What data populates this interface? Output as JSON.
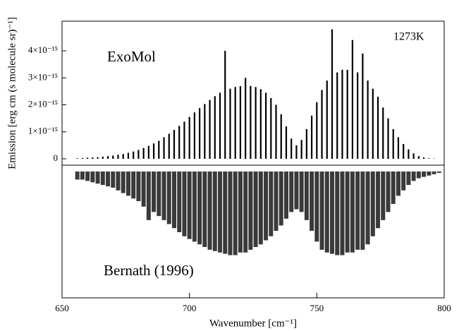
{
  "chart_data": {
    "type": "stick-spectrum",
    "xlabel": "Wavenumber [cm⁻¹]",
    "ylabel": "Emission [erg cm (s molecule sr)⁻¹]",
    "annotation": "1273K",
    "xlim": [
      650,
      800
    ],
    "xticks": [
      650,
      700,
      750,
      800
    ],
    "ylim": [
      0,
      5.1e-15
    ],
    "yticks": [
      0,
      {
        "value": 1e-15,
        "label": "1×10⁻¹⁵"
      },
      {
        "value": 2e-15,
        "label": "2×10⁻¹⁵"
      },
      {
        "value": 3e-15,
        "label": "3×10⁻¹⁵"
      },
      {
        "value": 4e-15,
        "label": "4×10⁻¹⁵"
      }
    ],
    "x": [
      656,
      658,
      660,
      662,
      664,
      666,
      668,
      670,
      672,
      674,
      676,
      678,
      680,
      682,
      684,
      686,
      688,
      690,
      692,
      694,
      696,
      698,
      700,
      702,
      704,
      706,
      708,
      710,
      712,
      714,
      716,
      718,
      720,
      722,
      724,
      726,
      728,
      730,
      732,
      734,
      736,
      738,
      740,
      742,
      744,
      746,
      748,
      750,
      752,
      754,
      756,
      758,
      760,
      762,
      764,
      766,
      768,
      770,
      772,
      774,
      776,
      778,
      780,
      782,
      784,
      786,
      788,
      790,
      792,
      794,
      796,
      798
    ],
    "series": [
      {
        "name": "ExoMol",
        "color": "#000000",
        "direction": "up",
        "values": [
          2e-17,
          3e-17,
          4e-17,
          5e-17,
          6e-17,
          8e-17,
          1e-16,
          1.2e-16,
          1.5e-16,
          1.8e-16,
          2.2e-16,
          2.7e-16,
          3.3e-16,
          4e-16,
          4.8e-16,
          5.7e-16,
          6.7e-16,
          8e-16,
          9.3e-16,
          1.07e-15,
          1.22e-15,
          1.38e-15,
          1.55e-15,
          1.72e-15,
          1.88e-15,
          2.03e-15,
          2.18e-15,
          2.32e-15,
          2.45e-15,
          4e-15,
          2.6e-15,
          2.66e-15,
          2.69e-15,
          3e-15,
          2.7e-15,
          2.66e-15,
          2.58e-15,
          2.45e-15,
          2.25e-15,
          2e-15,
          1.65e-15,
          1.2e-15,
          7.5e-16,
          5e-16,
          7e-16,
          1.1e-15,
          1.6e-15,
          2.1e-15,
          2.55e-15,
          2.9e-15,
          4.8e-15,
          3.2e-15,
          3.3e-15,
          3.3e-15,
          4.4e-15,
          3.2e-15,
          3.9e-15,
          2.9e-15,
          2.6e-15,
          2.3e-15,
          1.9e-15,
          1.5e-15,
          1.1e-15,
          8e-16,
          5.5e-16,
          3.5e-16,
          2e-16,
          1e-16,
          5e-17,
          2e-17,
          1e-17,
          0
        ]
      },
      {
        "name": "Bernath (1996)",
        "color": "#3a3a3a",
        "direction": "down",
        "values": [
          3e-16,
          3e-16,
          3.5e-16,
          4e-16,
          4.5e-16,
          5e-16,
          5.5e-16,
          6e-16,
          7e-16,
          8e-16,
          9e-16,
          1e-15,
          1.1e-15,
          1.3e-15,
          1.8e-15,
          1.5e-15,
          1.65e-15,
          1.8e-15,
          1.95e-15,
          2.1e-15,
          2.25e-15,
          2.4e-15,
          2.5e-15,
          2.6e-15,
          2.7e-15,
          2.8e-15,
          2.9e-15,
          2.95e-15,
          3e-15,
          3.05e-15,
          3.1e-15,
          3.1e-15,
          3e-15,
          3e-15,
          2.9e-15,
          2.8e-15,
          2.7e-15,
          2.55e-15,
          2.4e-15,
          2.2e-15,
          2e-15,
          1.75e-15,
          1.5e-15,
          1.4e-15,
          1.5e-15,
          1.8e-15,
          2.2e-15,
          2.6e-15,
          2.9e-15,
          3e-15,
          3.05e-15,
          3.1e-15,
          3.1e-15,
          3e-15,
          3e-15,
          2.9e-15,
          2.9e-15,
          2.7e-15,
          2.4e-15,
          2.1e-15,
          1.8e-15,
          1.5e-15,
          1.2e-15,
          9e-16,
          7e-16,
          5e-16,
          3.5e-16,
          2.5e-16,
          2e-16,
          1.5e-16,
          1e-16,
          5e-17
        ]
      }
    ]
  }
}
